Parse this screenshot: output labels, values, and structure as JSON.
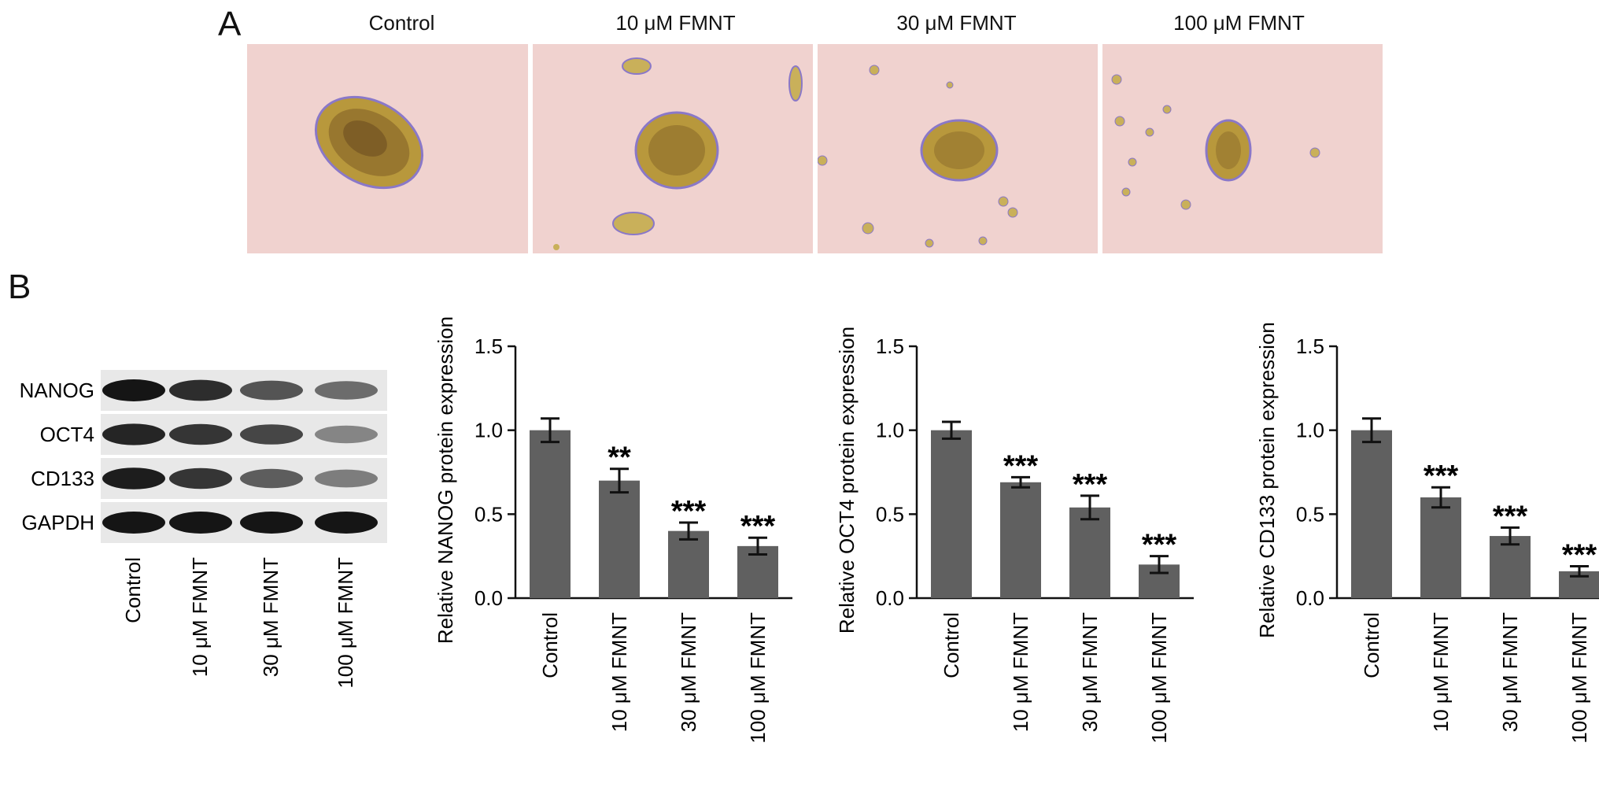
{
  "panels": {
    "a": "A",
    "b": "B"
  },
  "micrographs": {
    "titles": [
      "Control",
      "10 μM FMNT",
      "30 μM FMNT",
      "100 μM FMNT"
    ]
  },
  "western_blot": {
    "proteins": [
      "NANOG",
      "OCT4",
      "CD133",
      "GAPDH"
    ],
    "lanes": [
      "Control",
      "10 μM FMNT",
      "30 μM FMNT",
      "100 μM FMNT"
    ]
  },
  "chart_data": [
    {
      "type": "bar",
      "title": "",
      "categories": [
        "Control",
        "10 μM FMNT",
        "30 μM FMNT",
        "100 μM FMNT"
      ],
      "values": [
        1.0,
        0.7,
        0.4,
        0.31
      ],
      "errors": [
        0.07,
        0.07,
        0.05,
        0.05
      ],
      "significance": [
        "",
        "**",
        "***",
        "***"
      ],
      "ylabel": "Relative NANOG protein expression",
      "ylim": [
        0,
        1.5
      ],
      "yticks": [
        "0.0",
        "0.5",
        "1.0",
        "1.5"
      ],
      "bar_color": "#606060"
    },
    {
      "type": "bar",
      "title": "",
      "categories": [
        "Control",
        "10 μM FMNT",
        "30 μM FMNT",
        "100 μM FMNT"
      ],
      "values": [
        1.0,
        0.69,
        0.54,
        0.2
      ],
      "errors": [
        0.05,
        0.03,
        0.07,
        0.05
      ],
      "significance": [
        "",
        "***",
        "***",
        "***"
      ],
      "ylabel": "Relative OCT4 protein expression",
      "ylim": [
        0,
        1.5
      ],
      "yticks": [
        "0.0",
        "0.5",
        "1.0",
        "1.5"
      ],
      "bar_color": "#606060"
    },
    {
      "type": "bar",
      "title": "",
      "categories": [
        "Control",
        "10 μM FMNT",
        "30 μM FMNT",
        "100 μM FMNT"
      ],
      "values": [
        1.0,
        0.6,
        0.37,
        0.16
      ],
      "errors": [
        0.07,
        0.06,
        0.05,
        0.03
      ],
      "significance": [
        "",
        "***",
        "***",
        "***"
      ],
      "ylabel": "Relative CD133 protein expression",
      "ylim": [
        0,
        1.5
      ],
      "yticks": [
        "0.0",
        "0.5",
        "1.0",
        "1.5"
      ],
      "bar_color": "#606060"
    }
  ]
}
